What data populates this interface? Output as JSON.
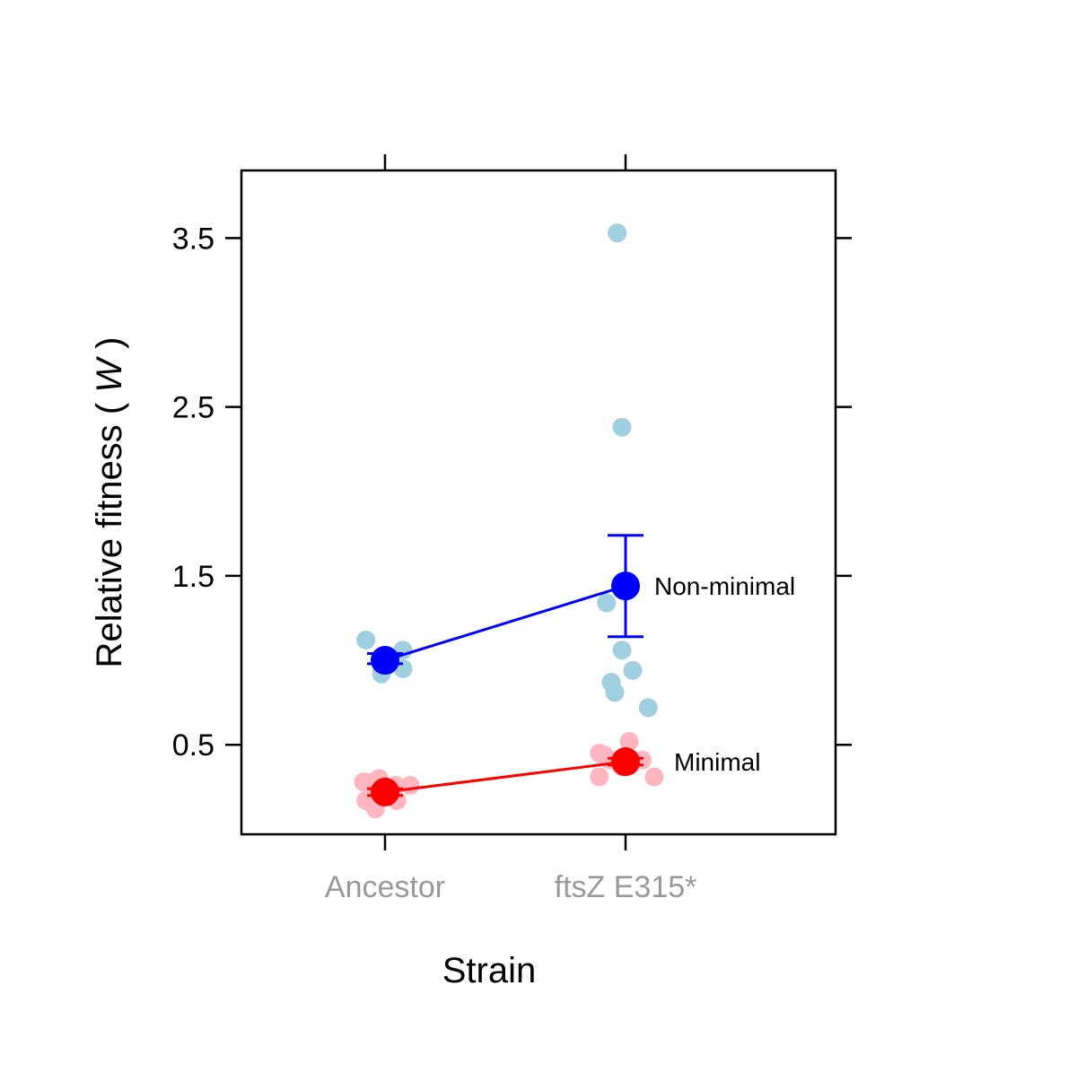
{
  "chart_data": {
    "type": "scatter",
    "xlabel": "Strain",
    "ylabel_main": "Relative fitness (",
    "ylabel_var": "W",
    "ylabel_close": ")",
    "categories": [
      "Ancestor",
      "ftsZ E315*"
    ],
    "yticks": [
      0.5,
      1.5,
      2.5,
      3.5
    ],
    "ylim": [
      -0.03,
      3.9
    ],
    "grid": false,
    "colors": {
      "nonminimal_points": "#a0cfe0",
      "nonminimal_mean": "#0000ff",
      "minimal_points": "#ffb6c1",
      "minimal_mean": "#ff0000",
      "tick_label_x": "#999999",
      "axis": "#000000"
    },
    "series": [
      {
        "name": "Non-minimal",
        "raw": [
          {
            "x": 0,
            "jitter": -0.16,
            "y": 1.12
          },
          {
            "x": 0,
            "jitter": -0.03,
            "y": 0.92
          },
          {
            "x": 0,
            "jitter": 0.02,
            "y": 0.97
          },
          {
            "x": 0,
            "jitter": 0.15,
            "y": 1.06
          },
          {
            "x": 0,
            "jitter": 0.15,
            "y": 0.95
          },
          {
            "x": 1,
            "jitter": -0.07,
            "y": 3.53
          },
          {
            "x": 1,
            "jitter": -0.03,
            "y": 2.38
          },
          {
            "x": 1,
            "jitter": -0.16,
            "y": 1.34
          },
          {
            "x": 1,
            "jitter": -0.03,
            "y": 1.06
          },
          {
            "x": 1,
            "jitter": 0.06,
            "y": 0.94
          },
          {
            "x": 1,
            "jitter": -0.12,
            "y": 0.87
          },
          {
            "x": 1,
            "jitter": -0.09,
            "y": 0.81
          },
          {
            "x": 1,
            "jitter": 0.19,
            "y": 0.72
          }
        ],
        "mean": [
          1.0,
          1.44
        ],
        "err_low": [
          0.98,
          1.14
        ],
        "err_high": [
          1.04,
          1.74
        ]
      },
      {
        "name": "Minimal",
        "raw": [
          {
            "x": 0,
            "jitter": -0.18,
            "y": 0.28
          },
          {
            "x": 0,
            "jitter": -0.13,
            "y": 0.26
          },
          {
            "x": 0,
            "jitter": -0.1,
            "y": 0.28
          },
          {
            "x": 0,
            "jitter": -0.05,
            "y": 0.3
          },
          {
            "x": 0,
            "jitter": -0.16,
            "y": 0.17
          },
          {
            "x": 0,
            "jitter": -0.08,
            "y": 0.12
          },
          {
            "x": 0,
            "jitter": 0.09,
            "y": 0.26
          },
          {
            "x": 0,
            "jitter": 0.1,
            "y": 0.17
          },
          {
            "x": 0,
            "jitter": 0.21,
            "y": 0.26
          },
          {
            "x": 1,
            "jitter": -0.22,
            "y": 0.45
          },
          {
            "x": 1,
            "jitter": -0.18,
            "y": 0.44
          },
          {
            "x": 1,
            "jitter": -0.13,
            "y": 0.41
          },
          {
            "x": 1,
            "jitter": -0.22,
            "y": 0.31
          },
          {
            "x": 1,
            "jitter": 0.03,
            "y": 0.52
          },
          {
            "x": 1,
            "jitter": -0.03,
            "y": 0.37
          },
          {
            "x": 1,
            "jitter": 0.04,
            "y": 0.38
          },
          {
            "x": 1,
            "jitter": 0.14,
            "y": 0.41
          },
          {
            "x": 1,
            "jitter": 0.24,
            "y": 0.31
          }
        ],
        "mean": [
          0.22,
          0.4
        ],
        "err_low": [
          0.2,
          0.38
        ],
        "err_high": [
          0.24,
          0.42
        ]
      }
    ]
  }
}
